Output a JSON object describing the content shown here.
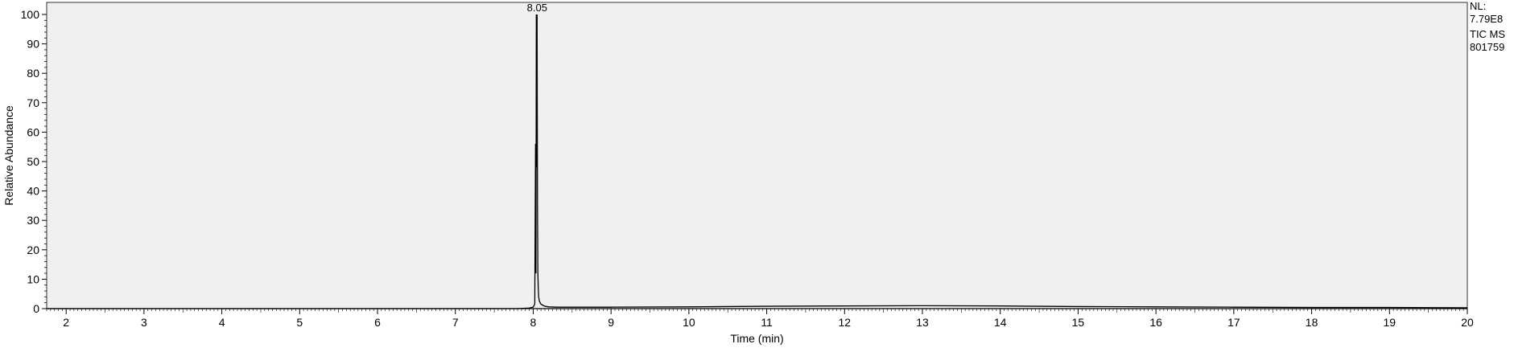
{
  "chart_data": {
    "type": "line",
    "xlabel": "Time (min)",
    "ylabel": "Relative Abundance",
    "xlim": [
      1.75,
      20.0
    ],
    "ylim": [
      0,
      100
    ],
    "x_ticks": [
      "2",
      "3",
      "4",
      "5",
      "6",
      "7",
      "8",
      "9",
      "10",
      "11",
      "12",
      "13",
      "14",
      "15",
      "16",
      "17",
      "18",
      "19",
      "20"
    ],
    "y_ticks": [
      "0",
      "10",
      "20",
      "30",
      "40",
      "50",
      "60",
      "70",
      "80",
      "90",
      "100"
    ],
    "grid": false,
    "side_info": [
      "NL:",
      "7.79E8",
      "TIC  MS",
      "801759"
    ],
    "peak_annotations": [
      {
        "x": 8.05,
        "y": 100,
        "label": "8.05"
      }
    ],
    "series": [
      {
        "x": [
          1.75,
          7.8,
          7.95,
          8.0,
          8.02,
          8.03,
          8.035,
          8.04,
          8.045,
          8.05,
          8.055,
          8.06,
          8.065,
          8.07,
          8.08,
          8.1,
          8.15,
          8.2,
          8.3,
          9.0,
          10.0,
          11.0,
          12.0,
          13.0,
          14.0,
          15.0,
          16.0,
          17.0,
          18.0,
          19.0,
          20.0
        ],
        "y": [
          0.0,
          0.0,
          0.2,
          0.5,
          1.5,
          56,
          12,
          100,
          48,
          100,
          35,
          12,
          7,
          4,
          2.5,
          1.5,
          0.8,
          0.6,
          0.5,
          0.5,
          0.6,
          0.8,
          0.9,
          1.0,
          0.9,
          0.7,
          0.6,
          0.5,
          0.4,
          0.4,
          0.3
        ]
      }
    ],
    "colors": {
      "plot_background": "#f0f0f0",
      "trace": "#000000",
      "axis": "#000000",
      "page_background": "#ffffff"
    }
  }
}
